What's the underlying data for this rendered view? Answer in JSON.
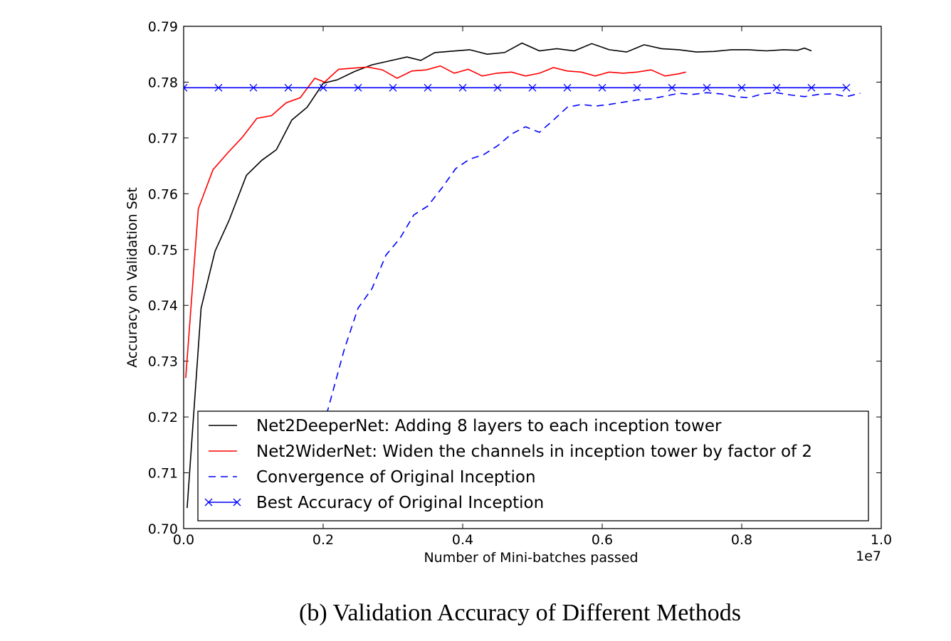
{
  "chart_data": {
    "type": "line",
    "xlabel": "Number of Mini-batches passed",
    "ylabel": "Accuracy on Validation Set",
    "x_offset_label": "1e7",
    "xlim": [
      0.0,
      1.0
    ],
    "ylim": [
      0.7,
      0.79
    ],
    "x_ticks": [
      "0.0",
      "0.2",
      "0.4",
      "0.6",
      "0.8",
      "1.0"
    ],
    "y_ticks": [
      "0.70",
      "0.71",
      "0.72",
      "0.73",
      "0.74",
      "0.75",
      "0.76",
      "0.77",
      "0.78",
      "0.79"
    ],
    "grid": false,
    "legend_position": "lower-right",
    "series": [
      {
        "name": "Net2DeeperNet: Adding 8 layers to each inception tower",
        "color": "#000000",
        "style": "solid",
        "marker": "none",
        "x": [
          0.005,
          0.025,
          0.045,
          0.065,
          0.09,
          0.112,
          0.133,
          0.155,
          0.177,
          0.2,
          0.22,
          0.245,
          0.27,
          0.295,
          0.32,
          0.34,
          0.36,
          0.38,
          0.41,
          0.435,
          0.46,
          0.485,
          0.51,
          0.535,
          0.56,
          0.585,
          0.61,
          0.635,
          0.66,
          0.685,
          0.71,
          0.735,
          0.76,
          0.785,
          0.81,
          0.835,
          0.86,
          0.88,
          0.89,
          0.9
        ],
        "y": [
          0.7037,
          0.7395,
          0.7497,
          0.7552,
          0.7633,
          0.766,
          0.7679,
          0.7732,
          0.7755,
          0.7798,
          0.7804,
          0.7819,
          0.7831,
          0.7838,
          0.7845,
          0.7839,
          0.7853,
          0.7855,
          0.7858,
          0.785,
          0.7853,
          0.787,
          0.7856,
          0.786,
          0.7856,
          0.7869,
          0.7858,
          0.7854,
          0.7867,
          0.786,
          0.7858,
          0.7854,
          0.7855,
          0.7858,
          0.7858,
          0.7856,
          0.7858,
          0.7857,
          0.7861,
          0.7856
        ]
      },
      {
        "name": "Net2WiderNet: Widen the channels in inception tower by factor of 2",
        "color": "#ff0000",
        "style": "solid",
        "marker": "none",
        "x": [
          0.003,
          0.021,
          0.042,
          0.063,
          0.084,
          0.105,
          0.126,
          0.147,
          0.167,
          0.188,
          0.202,
          0.222,
          0.243,
          0.264,
          0.285,
          0.306,
          0.327,
          0.348,
          0.368,
          0.388,
          0.408,
          0.428,
          0.449,
          0.47,
          0.49,
          0.51,
          0.53,
          0.55,
          0.57,
          0.59,
          0.61,
          0.63,
          0.65,
          0.67,
          0.69,
          0.71,
          0.72
        ],
        "y": [
          0.727,
          0.7573,
          0.7643,
          0.7673,
          0.7701,
          0.7735,
          0.774,
          0.7763,
          0.7772,
          0.7807,
          0.78,
          0.7823,
          0.7825,
          0.7827,
          0.7822,
          0.7807,
          0.782,
          0.7822,
          0.7829,
          0.7816,
          0.7823,
          0.7811,
          0.7816,
          0.7818,
          0.7811,
          0.7816,
          0.7826,
          0.782,
          0.7818,
          0.7811,
          0.7818,
          0.7816,
          0.7818,
          0.7822,
          0.7811,
          0.7815,
          0.7818
        ]
      },
      {
        "name": "Convergence of Original Inception",
        "color": "#0000ff",
        "style": "dashed",
        "marker": "none",
        "x": [
          0.205,
          0.23,
          0.25,
          0.27,
          0.29,
          0.31,
          0.33,
          0.35,
          0.37,
          0.39,
          0.41,
          0.43,
          0.45,
          0.47,
          0.49,
          0.51,
          0.53,
          0.55,
          0.57,
          0.59,
          0.61,
          0.63,
          0.65,
          0.67,
          0.69,
          0.71,
          0.73,
          0.75,
          0.77,
          0.79,
          0.81,
          0.83,
          0.85,
          0.87,
          0.89,
          0.91,
          0.93,
          0.95,
          0.97
        ],
        "y": [
          0.7205,
          0.732,
          0.7395,
          0.743,
          0.749,
          0.752,
          0.7562,
          0.7578,
          0.761,
          0.7645,
          0.7662,
          0.767,
          0.7686,
          0.7707,
          0.772,
          0.771,
          0.7732,
          0.7755,
          0.776,
          0.7757,
          0.776,
          0.7764,
          0.7768,
          0.777,
          0.7775,
          0.778,
          0.7778,
          0.7781,
          0.7779,
          0.7774,
          0.7772,
          0.7779,
          0.7781,
          0.7777,
          0.7774,
          0.7778,
          0.7779,
          0.7774,
          0.778
        ]
      },
      {
        "name": "Best Accuracy of Original Inception",
        "color": "#0000ff",
        "style": "solid",
        "marker": "x",
        "x": [
          0.0,
          0.05,
          0.1,
          0.15,
          0.2,
          0.25,
          0.3,
          0.35,
          0.4,
          0.45,
          0.5,
          0.55,
          0.6,
          0.65,
          0.7,
          0.75,
          0.8,
          0.85,
          0.9,
          0.95
        ],
        "y": [
          0.779,
          0.779,
          0.779,
          0.779,
          0.779,
          0.779,
          0.779,
          0.779,
          0.779,
          0.779,
          0.779,
          0.779,
          0.779,
          0.779,
          0.779,
          0.779,
          0.779,
          0.779,
          0.779,
          0.779
        ]
      }
    ]
  },
  "caption": "(b)  Validation Accuracy of Different Methods"
}
